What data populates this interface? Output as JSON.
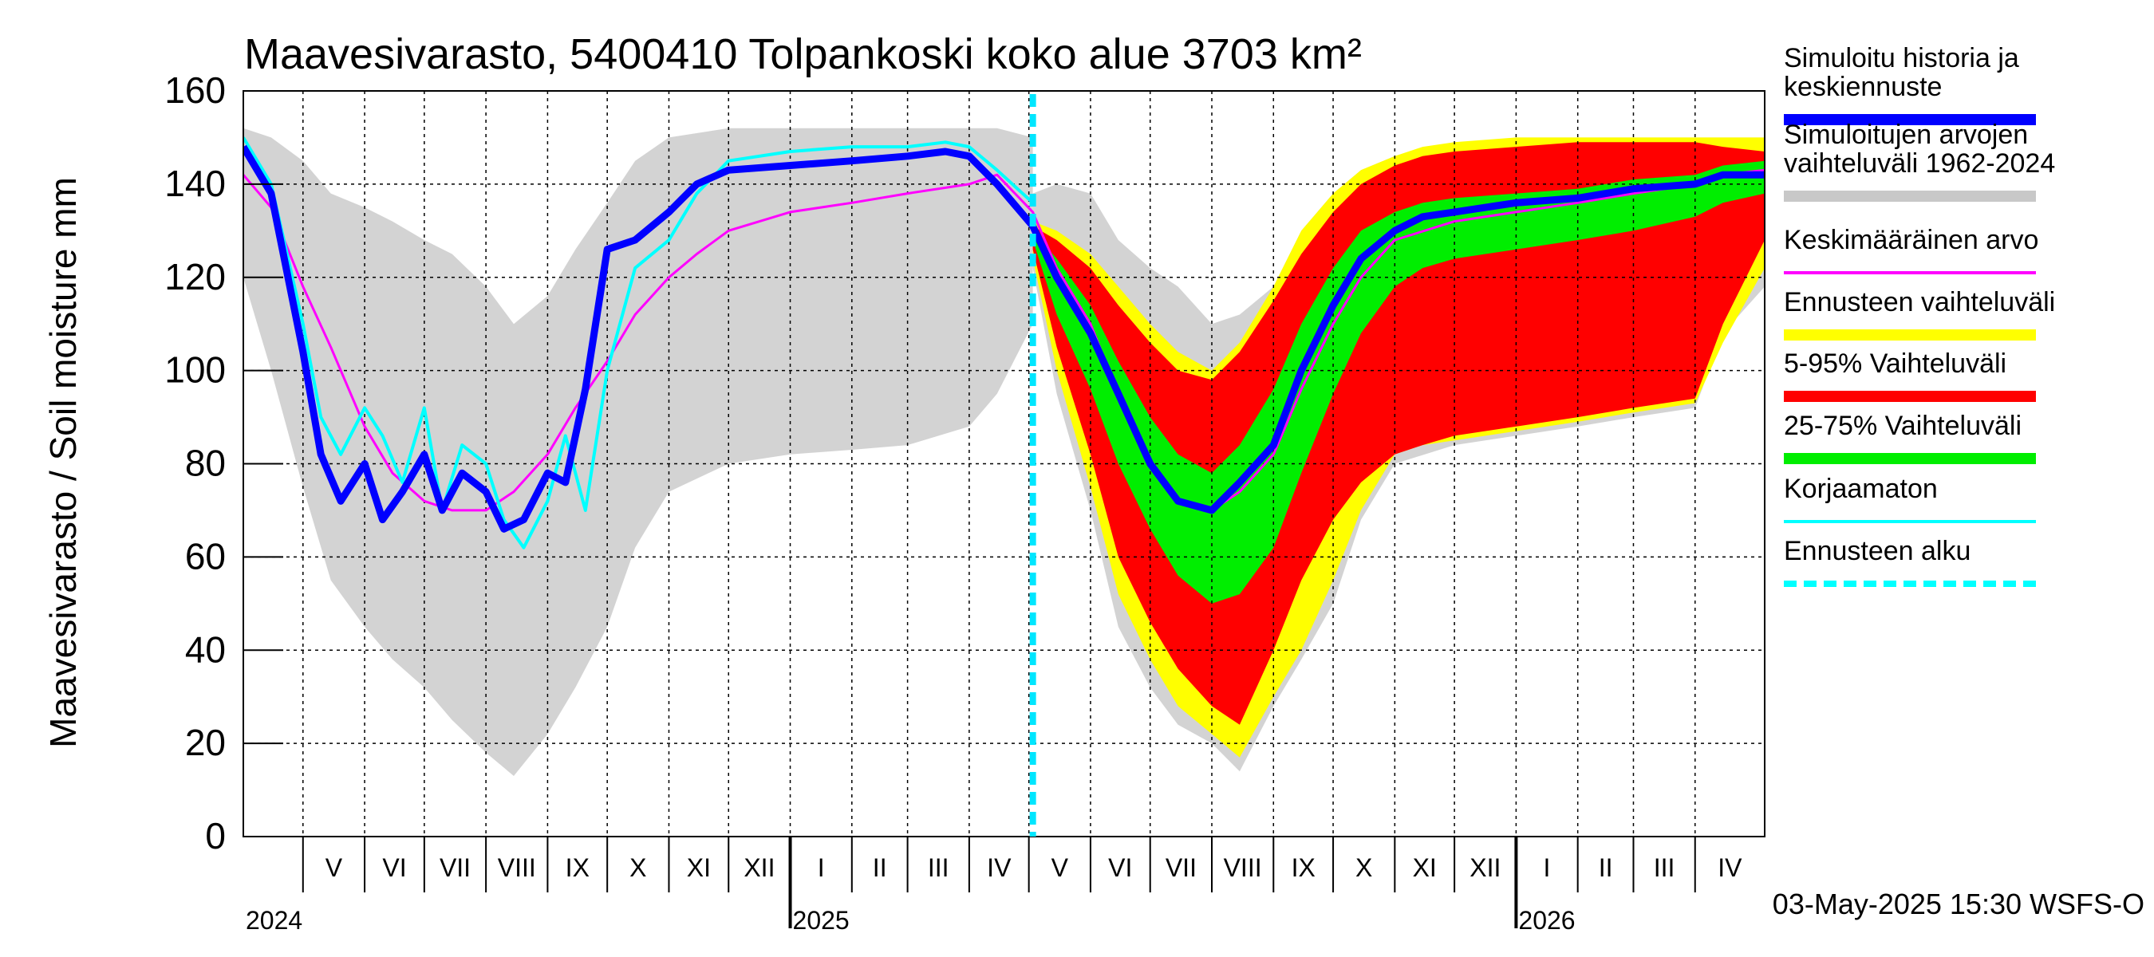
{
  "chart_data": {
    "type": "area",
    "title": "Maavesivarasto, 5400410 Tolpankoski koko alue 3703 km²",
    "ylabel": "Maavesivarasto / Soil moisture   mm",
    "ylim": [
      0,
      160
    ],
    "xlim": [
      "2024-04-01",
      "2026-05-06"
    ],
    "yticks": [
      0,
      20,
      40,
      60,
      80,
      100,
      120,
      140,
      160
    ],
    "grid": true,
    "forecast_start": "2025-05-03",
    "footer": "03-May-2025 15:30 WSFS-O",
    "months": [
      {
        "label": "V",
        "start": "2024-05-01"
      },
      {
        "label": "VI",
        "start": "2024-06-01"
      },
      {
        "label": "VII",
        "start": "2024-07-01"
      },
      {
        "label": "VIII",
        "start": "2024-08-01"
      },
      {
        "label": "IX",
        "start": "2024-09-01"
      },
      {
        "label": "X",
        "start": "2024-10-01"
      },
      {
        "label": "XI",
        "start": "2024-11-01"
      },
      {
        "label": "XII",
        "start": "2024-12-01"
      },
      {
        "label": "I",
        "start": "2025-01-01"
      },
      {
        "label": "II",
        "start": "2025-02-01"
      },
      {
        "label": "III",
        "start": "2025-03-01"
      },
      {
        "label": "IV",
        "start": "2025-04-01"
      },
      {
        "label": "V",
        "start": "2025-05-01"
      },
      {
        "label": "VI",
        "start": "2025-06-01"
      },
      {
        "label": "VII",
        "start": "2025-07-01"
      },
      {
        "label": "VIII",
        "start": "2025-08-01"
      },
      {
        "label": "IX",
        "start": "2025-09-01"
      },
      {
        "label": "X",
        "start": "2025-10-01"
      },
      {
        "label": "XI",
        "start": "2025-11-01"
      },
      {
        "label": "XII",
        "start": "2025-12-01"
      },
      {
        "label": "I",
        "start": "2026-01-01"
      },
      {
        "label": "II",
        "start": "2026-02-01"
      },
      {
        "label": "III",
        "start": "2026-03-01"
      },
      {
        "label": "IV",
        "start": "2026-04-01"
      }
    ],
    "years": [
      {
        "label": "2024",
        "date": "2024-04-01"
      },
      {
        "label": "2025",
        "date": "2025-01-01"
      },
      {
        "label": "2026",
        "date": "2026-01-01"
      }
    ],
    "legend": [
      {
        "label": "Simuloitu historia ja keskiennuste",
        "color": "#0000ff",
        "style": "thick"
      },
      {
        "label": "Simuloitujen arvojen vaihteluväli 1962-2024",
        "color": "#c8c8c8",
        "style": "thick"
      },
      {
        "label": "Keskimääräinen arvo",
        "color": "#ff00ff",
        "style": "thin"
      },
      {
        "label": "Ennusteen vaihteluväli",
        "color": "#ffff00",
        "style": "thick"
      },
      {
        "label": "5-95% Vaihteluväli",
        "color": "#ff0000",
        "style": "thick"
      },
      {
        "label": "25-75% Vaihteluväli",
        "color": "#00ee00",
        "style": "thick"
      },
      {
        "label": "Korjaamaton",
        "color": "#00ffff",
        "style": "thin"
      },
      {
        "label": "Ennusteen alku",
        "color": "#00ffff",
        "style": "dashed"
      }
    ],
    "series": [
      {
        "name": "Simuloitujen arvojen vaihteluväli 1962-2024",
        "kind": "band",
        "color": "#d3d3d3",
        "x": [
          "2024-04-01",
          "2024-04-15",
          "2024-05-01",
          "2024-05-15",
          "2024-06-01",
          "2024-06-15",
          "2024-07-01",
          "2024-07-15",
          "2024-08-01",
          "2024-08-15",
          "2024-09-01",
          "2024-09-15",
          "2024-10-01",
          "2024-10-15",
          "2024-11-01",
          "2024-12-01",
          "2025-01-01",
          "2025-02-01",
          "2025-03-01",
          "2025-04-01",
          "2025-04-15",
          "2025-05-03"
        ],
        "lower": [
          120,
          100,
          75,
          55,
          45,
          38,
          32,
          25,
          18,
          13,
          22,
          32,
          45,
          62,
          74,
          80,
          82,
          83,
          84,
          88,
          95,
          110
        ],
        "upper": [
          152,
          150,
          145,
          138,
          135,
          132,
          128,
          125,
          118,
          110,
          116,
          126,
          136,
          145,
          150,
          152,
          152,
          152,
          152,
          152,
          152,
          150
        ]
      },
      {
        "name": "Simuloitujen arvojen vaihteluväli 1962-2024 (ennuste)",
        "kind": "band",
        "color": "#d3d3d3",
        "x": [
          "2025-05-03",
          "2025-05-15",
          "2025-06-01",
          "2025-06-15",
          "2025-07-01",
          "2025-07-15",
          "2025-08-01",
          "2025-08-15",
          "2025-09-01",
          "2025-09-15",
          "2025-10-01",
          "2025-10-15",
          "2025-11-01",
          "2025-12-01",
          "2026-01-01",
          "2026-02-01",
          "2026-03-01",
          "2026-04-01",
          "2026-04-15",
          "2026-05-06"
        ],
        "lower": [
          122,
          95,
          70,
          45,
          32,
          24,
          20,
          14,
          28,
          38,
          50,
          68,
          80,
          84,
          86,
          88,
          90,
          92,
          108,
          118
        ],
        "upper": [
          138,
          140,
          138,
          128,
          122,
          118,
          110,
          112,
          118,
          130,
          138,
          143,
          146,
          148,
          150,
          150,
          150,
          150,
          150,
          150
        ]
      },
      {
        "name": "Ennusteen vaihteluväli",
        "kind": "band",
        "color": "#ffff00",
        "x": [
          "2025-05-03",
          "2025-05-15",
          "2025-06-01",
          "2025-06-15",
          "2025-07-01",
          "2025-07-15",
          "2025-08-01",
          "2025-08-15",
          "2025-09-01",
          "2025-09-15",
          "2025-10-01",
          "2025-10-15",
          "2025-11-01",
          "2025-11-15",
          "2025-12-01",
          "2026-01-01",
          "2026-02-01",
          "2026-03-01",
          "2026-04-01",
          "2026-04-15",
          "2026-05-06"
        ],
        "lower": [
          124,
          100,
          75,
          52,
          38,
          28,
          22,
          17,
          30,
          40,
          55,
          70,
          82,
          84,
          85,
          87,
          89,
          91,
          93,
          106,
          122
        ],
        "upper": [
          132,
          130,
          125,
          118,
          110,
          104,
          100,
          106,
          118,
          130,
          138,
          143,
          146,
          148,
          149,
          150,
          150,
          150,
          150,
          150,
          150
        ]
      },
      {
        "name": "5-95% Vaihteluväli",
        "kind": "band",
        "color": "#ff0000",
        "x": [
          "2025-05-03",
          "2025-05-15",
          "2025-06-01",
          "2025-06-15",
          "2025-07-01",
          "2025-07-15",
          "2025-08-01",
          "2025-08-15",
          "2025-09-01",
          "2025-09-15",
          "2025-10-01",
          "2025-10-15",
          "2025-11-01",
          "2025-11-15",
          "2025-12-01",
          "2026-01-01",
          "2026-02-01",
          "2026-03-01",
          "2026-04-01",
          "2026-04-15",
          "2026-05-06"
        ],
        "lower": [
          126,
          105,
          82,
          60,
          46,
          36,
          28,
          24,
          40,
          55,
          68,
          76,
          82,
          84,
          86,
          88,
          90,
          92,
          94,
          110,
          128
        ],
        "upper": [
          131,
          128,
          122,
          114,
          106,
          100,
          98,
          104,
          115,
          125,
          134,
          140,
          144,
          146,
          147,
          148,
          149,
          149,
          149,
          148,
          147
        ]
      },
      {
        "name": "25-75% Vaihteluväli",
        "kind": "band",
        "color": "#00ee00",
        "x": [
          "2025-05-03",
          "2025-05-15",
          "2025-06-01",
          "2025-06-15",
          "2025-07-01",
          "2025-07-15",
          "2025-08-01",
          "2025-08-15",
          "2025-09-01",
          "2025-09-15",
          "2025-10-01",
          "2025-10-15",
          "2025-11-01",
          "2025-11-15",
          "2025-12-01",
          "2026-01-01",
          "2026-02-01",
          "2026-03-01",
          "2026-04-01",
          "2026-04-15",
          "2026-05-06"
        ],
        "lower": [
          128,
          112,
          96,
          80,
          66,
          56,
          50,
          52,
          62,
          78,
          95,
          108,
          118,
          122,
          124,
          126,
          128,
          130,
          133,
          136,
          138
        ],
        "upper": [
          130,
          124,
          114,
          102,
          90,
          82,
          78,
          84,
          96,
          110,
          122,
          130,
          134,
          136,
          137,
          138,
          139,
          141,
          142,
          144,
          145
        ]
      },
      {
        "name": "Keskimääräinen arvo",
        "kind": "line",
        "color": "#ff00ff",
        "x": [
          "2024-04-01",
          "2024-04-15",
          "2024-05-01",
          "2024-05-15",
          "2024-06-01",
          "2024-06-15",
          "2024-07-01",
          "2024-07-15",
          "2024-08-01",
          "2024-08-15",
          "2024-09-01",
          "2024-09-15",
          "2024-10-01",
          "2024-10-15",
          "2024-11-01",
          "2024-11-15",
          "2024-12-01",
          "2025-01-01",
          "2025-02-01",
          "2025-03-01",
          "2025-04-01",
          "2025-04-15",
          "2025-05-03",
          "2025-05-15",
          "2025-06-01",
          "2025-06-15",
          "2025-07-01",
          "2025-07-15",
          "2025-08-01",
          "2025-08-15",
          "2025-09-01",
          "2025-09-15",
          "2025-10-01",
          "2025-10-15",
          "2025-11-01",
          "2025-12-01",
          "2026-01-01",
          "2026-02-01",
          "2026-03-01",
          "2026-04-01",
          "2026-04-15",
          "2026-05-06"
        ],
        "y": [
          142,
          135,
          118,
          105,
          88,
          78,
          72,
          70,
          70,
          74,
          82,
          92,
          102,
          112,
          120,
          125,
          130,
          134,
          136,
          138,
          140,
          142,
          134,
          122,
          110,
          95,
          80,
          72,
          70,
          74,
          82,
          96,
          110,
          120,
          128,
          132,
          134,
          136,
          138,
          140,
          142,
          143
        ]
      },
      {
        "name": "Korjaamaton",
        "kind": "line",
        "color": "#00ffff",
        "x": [
          "2024-04-01",
          "2024-04-15",
          "2024-05-01",
          "2024-05-10",
          "2024-05-20",
          "2024-06-01",
          "2024-06-10",
          "2024-06-20",
          "2024-07-01",
          "2024-07-10",
          "2024-07-20",
          "2024-08-01",
          "2024-08-10",
          "2024-08-20",
          "2024-09-01",
          "2024-09-10",
          "2024-09-20",
          "2024-10-01",
          "2024-10-15",
          "2024-11-01",
          "2024-11-15",
          "2024-12-01",
          "2025-01-01",
          "2025-02-01",
          "2025-03-01",
          "2025-03-20",
          "2025-04-01",
          "2025-04-15",
          "2025-05-03"
        ],
        "y": [
          150,
          140,
          110,
          90,
          82,
          92,
          86,
          76,
          92,
          70,
          84,
          80,
          68,
          62,
          72,
          86,
          70,
          100,
          122,
          128,
          138,
          145,
          147,
          148,
          148,
          149,
          148,
          143,
          136
        ]
      },
      {
        "name": "Simuloitu historia ja keskiennuste",
        "kind": "line",
        "color": "#0000ff",
        "x": [
          "2024-04-01",
          "2024-04-15",
          "2024-05-01",
          "2024-05-10",
          "2024-05-20",
          "2024-06-01",
          "2024-06-10",
          "2024-06-20",
          "2024-07-01",
          "2024-07-10",
          "2024-07-20",
          "2024-08-01",
          "2024-08-10",
          "2024-08-20",
          "2024-09-01",
          "2024-09-10",
          "2024-09-20",
          "2024-10-01",
          "2024-10-15",
          "2024-11-01",
          "2024-11-15",
          "2024-12-01",
          "2025-01-01",
          "2025-02-01",
          "2025-03-01",
          "2025-03-20",
          "2025-04-01",
          "2025-04-15",
          "2025-05-03",
          "2025-05-15",
          "2025-06-01",
          "2025-06-15",
          "2025-07-01",
          "2025-07-15",
          "2025-08-01",
          "2025-08-15",
          "2025-09-01",
          "2025-09-15",
          "2025-10-01",
          "2025-10-15",
          "2025-11-01",
          "2025-11-15",
          "2025-12-01",
          "2026-01-01",
          "2026-02-01",
          "2026-03-01",
          "2026-04-01",
          "2026-04-15",
          "2026-05-06"
        ],
        "y": [
          148,
          138,
          104,
          82,
          72,
          80,
          68,
          74,
          82,
          70,
          78,
          74,
          66,
          68,
          78,
          76,
          96,
          126,
          128,
          134,
          140,
          143,
          144,
          145,
          146,
          147,
          146,
          140,
          131,
          120,
          108,
          95,
          80,
          72,
          70,
          76,
          84,
          100,
          114,
          124,
          130,
          133,
          134,
          136,
          137,
          139,
          140,
          142,
          142
        ]
      }
    ]
  }
}
